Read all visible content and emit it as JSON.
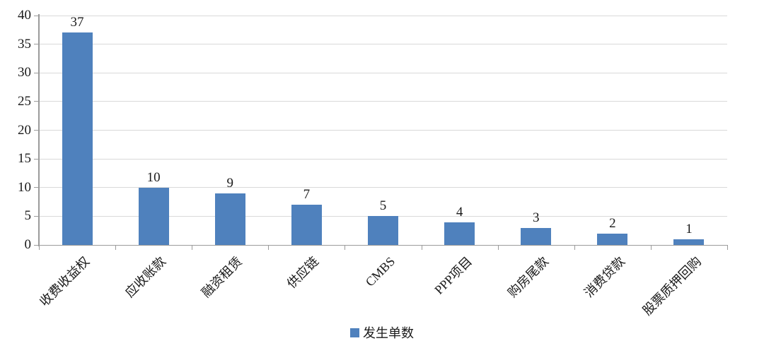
{
  "chart_data": {
    "type": "bar",
    "categories": [
      "收费收益权",
      "应收账款",
      "融资租赁",
      "供应链",
      "CMBS",
      "PPP项目",
      "购房尾款",
      "消费贷款",
      "股票质押回购"
    ],
    "values": [
      37,
      10,
      9,
      7,
      5,
      4,
      3,
      2,
      1
    ],
    "series_name": "发生单数",
    "title": "",
    "xlabel": "",
    "ylabel": "",
    "ylim": [
      0,
      40
    ],
    "yticks": [
      0,
      5,
      10,
      15,
      20,
      25,
      30,
      35,
      40
    ],
    "grid": true,
    "legend_position": "bottom",
    "legend_label": "发生单数",
    "bar_color": "#4f81bd",
    "gridline_color": "#d9d9d9",
    "axis_color": "#9b9b9b",
    "text_color": "#1a1a1a"
  }
}
